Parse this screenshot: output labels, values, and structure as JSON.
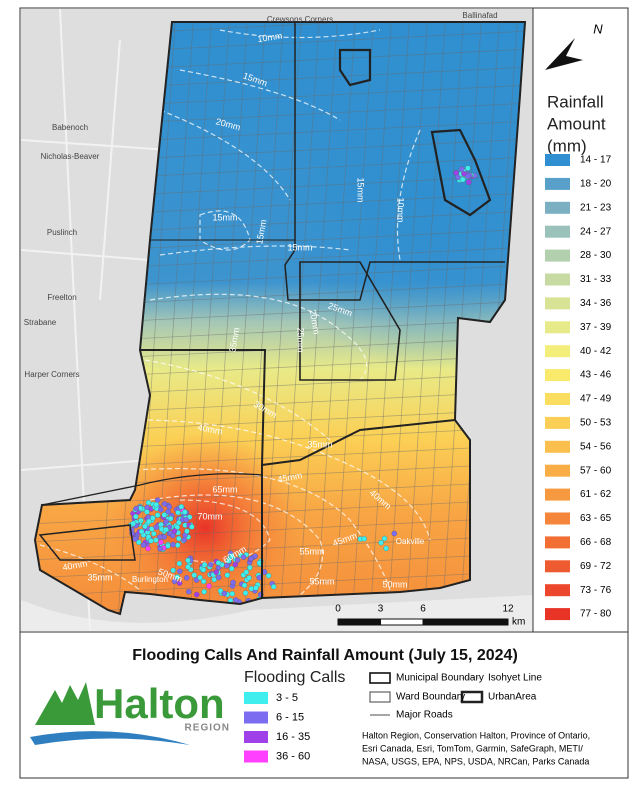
{
  "map": {
    "place_names": [
      "Crewsons Corners",
      "Ballinafad",
      "Babenoch",
      "Nicholas-Beaver",
      "Puslinch",
      "Freelton",
      "Strabane",
      "Harper Corners",
      "Oakville",
      "Burlington"
    ],
    "contour_labels": [
      "10mm",
      "10mm",
      "15mm",
      "20mm",
      "15mm",
      "15mm",
      "15mm",
      "15mm",
      "20mm",
      "25mm",
      "25mm",
      "35mm",
      "30mm",
      "35mm",
      "40mm",
      "40mm",
      "45mm",
      "45mm",
      "55mm",
      "55mm",
      "60mm",
      "65mm",
      "70mm",
      "40mm",
      "35mm",
      "50mm",
      "50mm"
    ],
    "north_label": "N",
    "scale_bar": {
      "ticks": [
        0,
        3,
        6,
        12
      ],
      "unit": "km"
    }
  },
  "rainfall_legend": {
    "title_lines": [
      "Rainfall",
      "Amount",
      "(mm)"
    ],
    "classes": [
      {
        "label": "14 - 17",
        "color": "#2f8fd0"
      },
      {
        "label": "18 - 20",
        "color": "#58a0ca"
      },
      {
        "label": "21 - 23",
        "color": "#7bb0c3"
      },
      {
        "label": "24 - 27",
        "color": "#9ac1ba"
      },
      {
        "label": "28 - 30",
        "color": "#b2cfae"
      },
      {
        "label": "31 - 33",
        "color": "#c7daa2"
      },
      {
        "label": "34 - 36",
        "color": "#d8e395"
      },
      {
        "label": "37 - 39",
        "color": "#e7ea88"
      },
      {
        "label": "40 - 42",
        "color": "#f3ee79"
      },
      {
        "label": "43 - 46",
        "color": "#f9ea6b"
      },
      {
        "label": "47 - 49",
        "color": "#fbdd5f"
      },
      {
        "label": "50 - 53",
        "color": "#fbcf56"
      },
      {
        "label": "54 - 56",
        "color": "#fbbf4d"
      },
      {
        "label": "57 - 60",
        "color": "#f9ad46"
      },
      {
        "label": "61 - 62",
        "color": "#f79a3f"
      },
      {
        "label": "63 - 65",
        "color": "#f5853a"
      },
      {
        "label": "66 - 68",
        "color": "#f26f34"
      },
      {
        "label": "69 - 72",
        "color": "#ef5b30"
      },
      {
        "label": "73 - 76",
        "color": "#ec472c"
      },
      {
        "label": "77 - 80",
        "color": "#e83327"
      }
    ]
  },
  "footer": {
    "title": "Flooding Calls And Rainfall Amount (July 15, 2024)",
    "logo": {
      "name": "Halton",
      "subtitle": "REGION"
    },
    "flooding_calls": {
      "title": "Flooding Calls",
      "classes": [
        {
          "label": "3 - 5",
          "color": "#40eeee"
        },
        {
          "label": "6 - 15",
          "color": "#7b6cf0"
        },
        {
          "label": "16 - 35",
          "color": "#a040e8"
        },
        {
          "label": "36 - 60",
          "color": "#ff40ff"
        }
      ]
    },
    "boundary_legend": [
      "Municipal Boundary",
      "Ward Boundary",
      "Major Roads",
      "Isohyet Line",
      "UrbanArea"
    ],
    "credits": [
      "Halton Region, Conservation Halton, Province of Ontario,",
      "Esri Canada, Esri, TomTom, Garmin, SafeGraph, METI/",
      "NASA, USGS, EPA, NPS, USDA, NRCan, Parks Canada"
    ]
  }
}
